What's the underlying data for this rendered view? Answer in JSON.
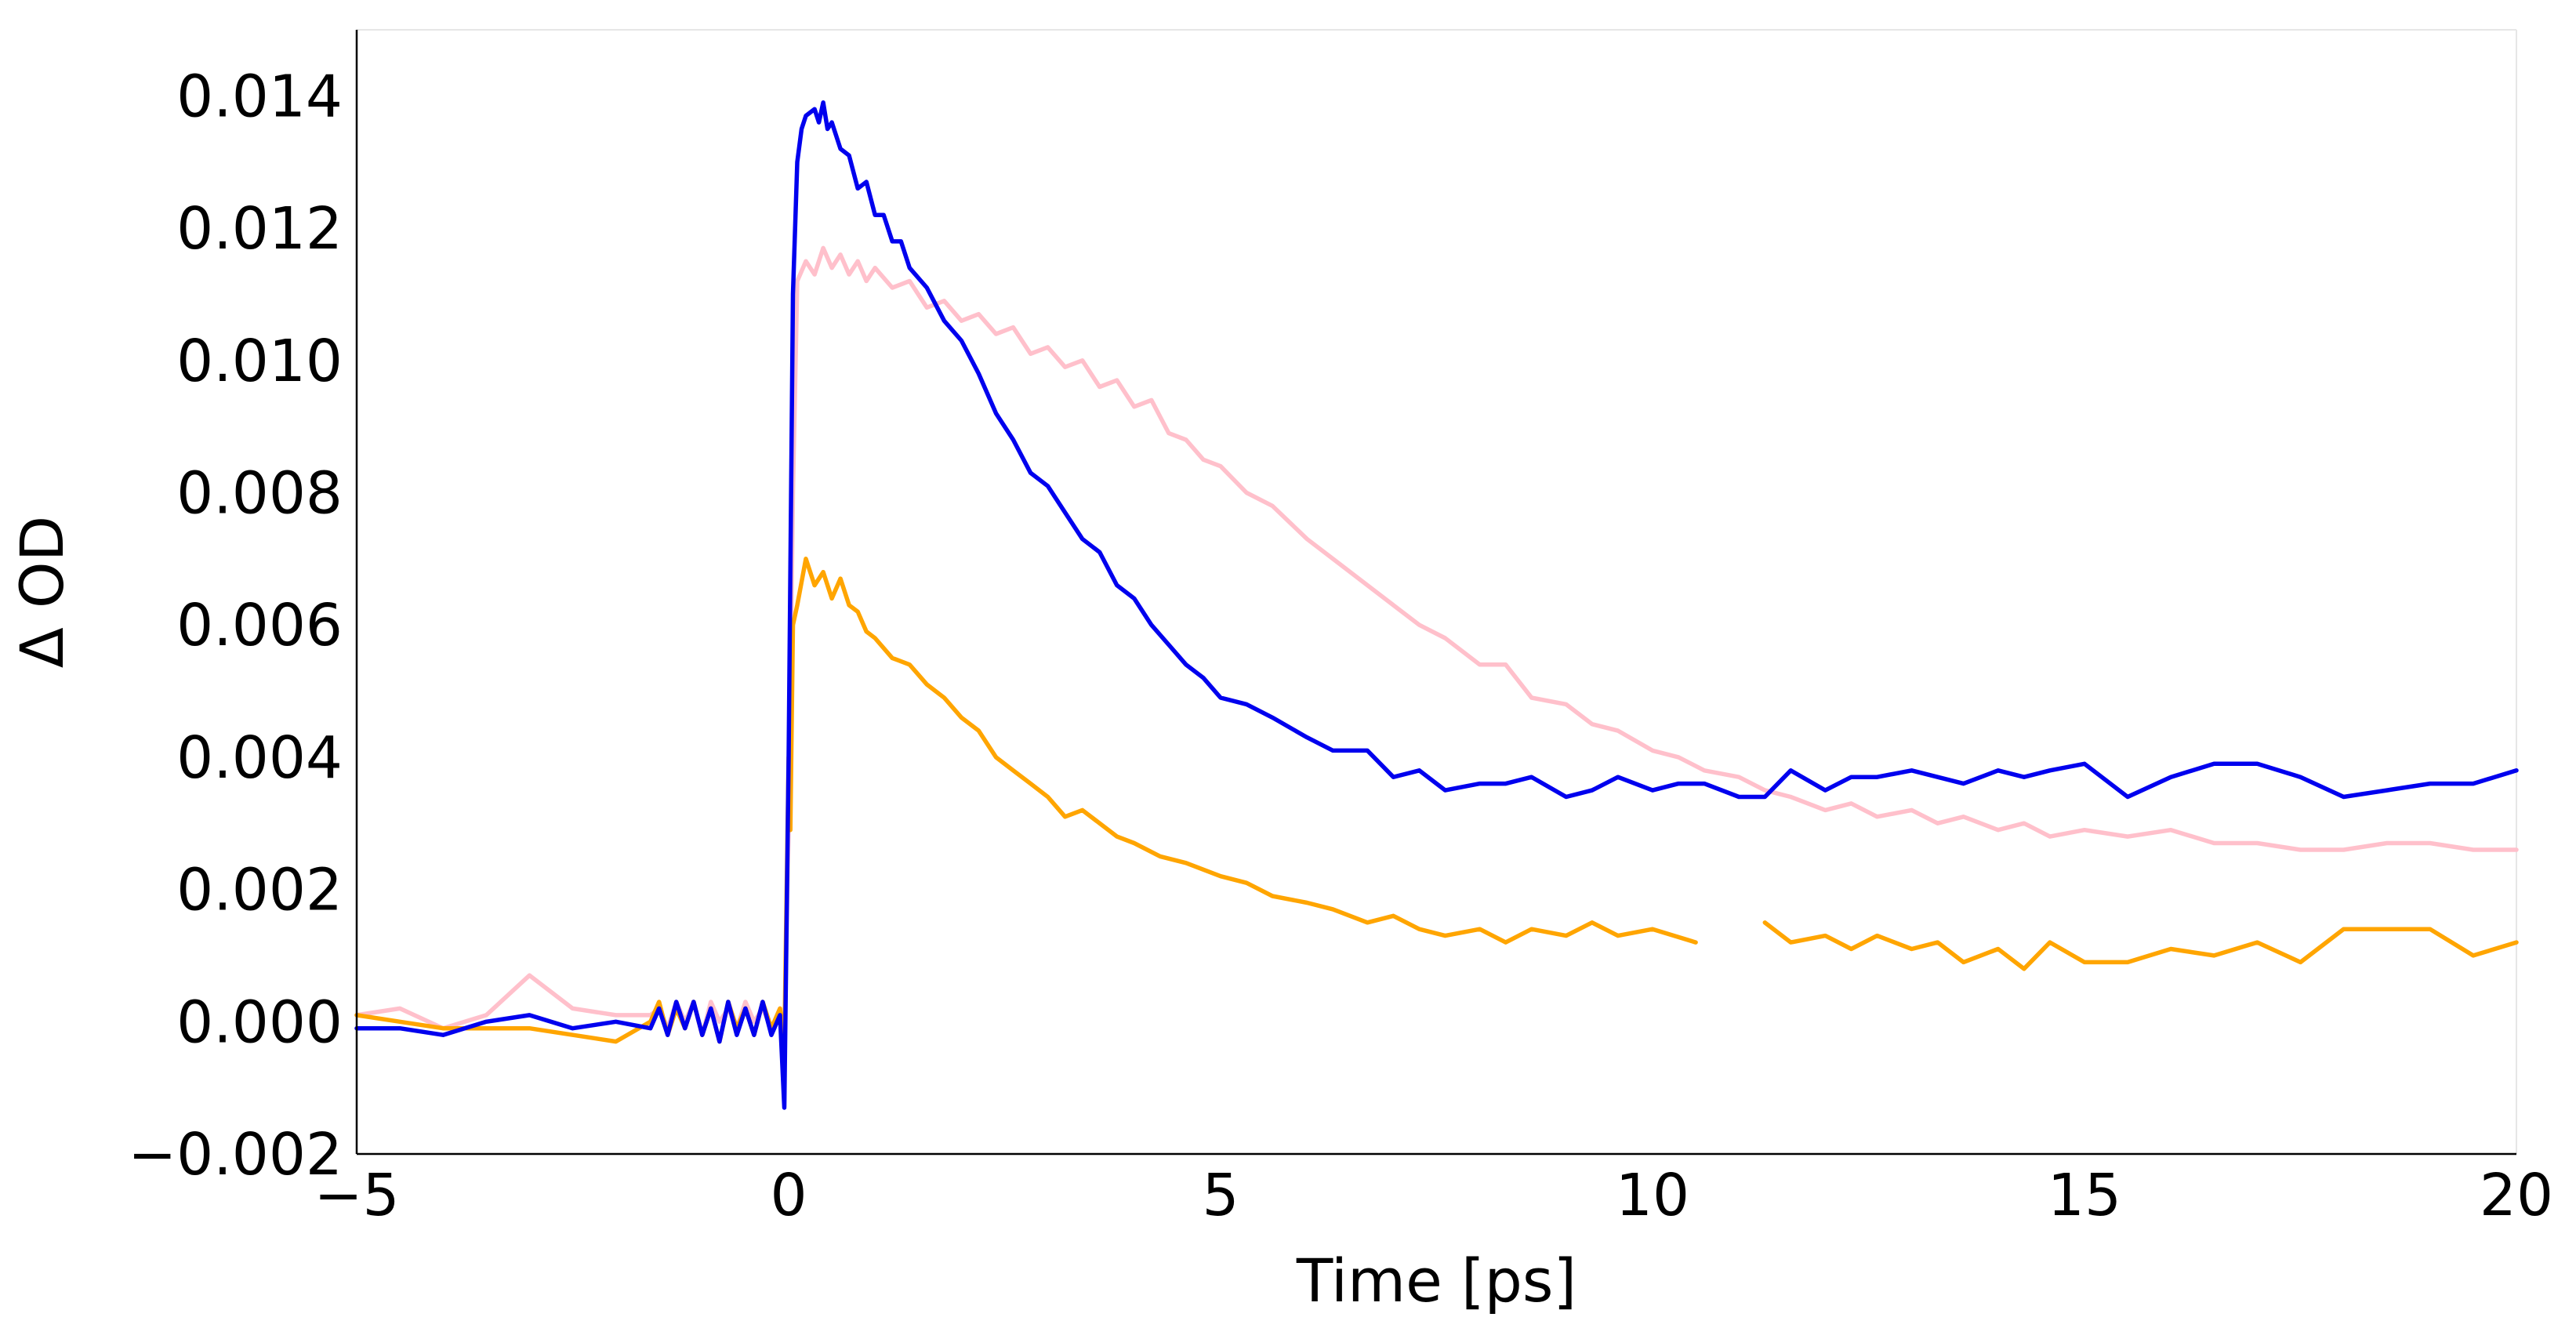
{
  "chart_data": {
    "type": "line",
    "title": "",
    "xlabel": "Time [ps]",
    "ylabel": "Δ OD",
    "xlim": [
      -5,
      20
    ],
    "ylim": [
      -0.002,
      0.015
    ],
    "x_ticks": [
      -5,
      0,
      5,
      10,
      15,
      20
    ],
    "x_tick_labels": [
      "−5",
      "0",
      "5",
      "10",
      "15",
      "20"
    ],
    "y_ticks": [
      -0.002,
      0.0,
      0.002,
      0.004,
      0.006,
      0.008,
      0.01,
      0.012,
      0.014
    ],
    "y_tick_labels": [
      "−0.002",
      "0.000",
      "0.002",
      "0.004",
      "0.006",
      "0.008",
      "0.010",
      "0.012",
      "0.014"
    ],
    "grid": false,
    "legend": "none",
    "series": [
      {
        "color": "#ffc0cb",
        "points": [
          [
            -5.0,
            0.0001
          ],
          [
            -4.5,
            0.0002
          ],
          [
            -4.0,
            -0.0001
          ],
          [
            -3.5,
            0.0001
          ],
          [
            -3.0,
            0.0007
          ],
          [
            -2.5,
            0.0002
          ],
          [
            -2.0,
            0.0001
          ],
          [
            -1.6,
            0.0001
          ],
          [
            -1.5,
            0.0002
          ],
          [
            -1.4,
            -0.0001
          ],
          [
            -1.3,
            0.0003
          ],
          [
            -1.2,
            0.0
          ],
          [
            -1.1,
            0.0003
          ],
          [
            -1.0,
            -0.0002
          ],
          [
            -0.9,
            0.0003
          ],
          [
            -0.8,
            0.0
          ],
          [
            -0.7,
            0.0002
          ],
          [
            -0.6,
            -0.0001
          ],
          [
            -0.5,
            0.0003
          ],
          [
            -0.4,
            0.0
          ],
          [
            -0.3,
            0.0002
          ],
          [
            -0.2,
            -0.0001
          ],
          [
            -0.1,
            0.0002
          ],
          [
            -0.05,
            -0.0005
          ],
          [
            0.0,
            0.003
          ],
          [
            0.05,
            0.008
          ],
          [
            0.1,
            0.0112
          ],
          [
            0.2,
            0.0115
          ],
          [
            0.3,
            0.0113
          ],
          [
            0.4,
            0.0117
          ],
          [
            0.5,
            0.0114
          ],
          [
            0.6,
            0.0116
          ],
          [
            0.7,
            0.0113
          ],
          [
            0.8,
            0.0115
          ],
          [
            0.9,
            0.0112
          ],
          [
            1.0,
            0.0114
          ],
          [
            1.2,
            0.0111
          ],
          [
            1.4,
            0.0112
          ],
          [
            1.6,
            0.0108
          ],
          [
            1.8,
            0.0109
          ],
          [
            2.0,
            0.0106
          ],
          [
            2.2,
            0.0107
          ],
          [
            2.4,
            0.0104
          ],
          [
            2.6,
            0.0105
          ],
          [
            2.8,
            0.0101
          ],
          [
            3.0,
            0.0102
          ],
          [
            3.2,
            0.0099
          ],
          [
            3.4,
            0.01
          ],
          [
            3.6,
            0.0096
          ],
          [
            3.8,
            0.0097
          ],
          [
            4.0,
            0.0093
          ],
          [
            4.2,
            0.0094
          ],
          [
            4.4,
            0.0089
          ],
          [
            4.6,
            0.0088
          ],
          [
            4.8,
            0.0085
          ],
          [
            5.0,
            0.0084
          ],
          [
            5.3,
            0.008
          ],
          [
            5.6,
            0.0078
          ],
          [
            6.0,
            0.0073
          ],
          [
            6.3,
            0.007
          ],
          [
            6.7,
            0.0066
          ],
          [
            7.0,
            0.0063
          ],
          [
            7.3,
            0.006
          ],
          [
            7.6,
            0.0058
          ],
          [
            8.0,
            0.0054
          ],
          [
            8.3,
            0.0054
          ],
          [
            8.6,
            0.0049
          ],
          [
            9.0,
            0.0048
          ],
          [
            9.3,
            0.0045
          ],
          [
            9.6,
            0.0044
          ],
          [
            10.0,
            0.0041
          ],
          [
            10.3,
            0.004
          ],
          [
            10.6,
            0.0038
          ],
          [
            11.0,
            0.0037
          ],
          [
            11.3,
            0.0035
          ],
          [
            11.6,
            0.0034
          ],
          [
            12.0,
            0.0032
          ],
          [
            12.3,
            0.0033
          ],
          [
            12.6,
            0.0031
          ],
          [
            13.0,
            0.0032
          ],
          [
            13.3,
            0.003
          ],
          [
            13.6,
            0.0031
          ],
          [
            14.0,
            0.0029
          ],
          [
            14.3,
            0.003
          ],
          [
            14.6,
            0.0028
          ],
          [
            15.0,
            0.0029
          ],
          [
            15.5,
            0.0028
          ],
          [
            16.0,
            0.0029
          ],
          [
            16.5,
            0.0027
          ],
          [
            17.0,
            0.0027
          ],
          [
            17.5,
            0.0026
          ],
          [
            18.0,
            0.0026
          ],
          [
            18.5,
            0.0027
          ],
          [
            19.0,
            0.0027
          ],
          [
            19.5,
            0.0026
          ],
          [
            20.0,
            0.0026
          ]
        ]
      },
      {
        "color": "#ffa500",
        "points": [
          [
            -5.0,
            0.0001
          ],
          [
            -4.0,
            -0.0001
          ],
          [
            -3.0,
            -0.0001
          ],
          [
            -2.0,
            -0.0003
          ],
          [
            -1.6,
            0.0
          ],
          [
            -1.5,
            0.0003
          ],
          [
            -1.4,
            -0.0002
          ],
          [
            -1.3,
            0.0002
          ],
          [
            -1.2,
            -0.0001
          ],
          [
            -1.1,
            0.0003
          ],
          [
            -1.0,
            -0.0002
          ],
          [
            -0.9,
            0.0002
          ],
          [
            -0.8,
            -0.0003
          ],
          [
            -0.7,
            0.0003
          ],
          [
            -0.6,
            -0.0001
          ],
          [
            -0.5,
            0.0002
          ],
          [
            -0.4,
            -0.0002
          ],
          [
            -0.3,
            0.0003
          ],
          [
            -0.2,
            -0.0001
          ],
          [
            -0.1,
            0.0002
          ],
          [
            -0.05,
            -0.0004
          ],
          [
            0.0,
            0.004
          ],
          [
            0.02,
            0.0029
          ],
          [
            0.05,
            0.006
          ],
          [
            0.1,
            0.0063
          ],
          [
            0.2,
            0.007
          ],
          [
            0.3,
            0.0066
          ],
          [
            0.4,
            0.0068
          ],
          [
            0.5,
            0.0064
          ],
          [
            0.6,
            0.0067
          ],
          [
            0.7,
            0.0063
          ],
          [
            0.8,
            0.0062
          ],
          [
            0.9,
            0.0059
          ],
          [
            1.0,
            0.0058
          ],
          [
            1.2,
            0.0055
          ],
          [
            1.4,
            0.0054
          ],
          [
            1.6,
            0.0051
          ],
          [
            1.8,
            0.0049
          ],
          [
            2.0,
            0.0046
          ],
          [
            2.2,
            0.0044
          ],
          [
            2.4,
            0.004
          ],
          [
            2.6,
            0.0038
          ],
          [
            2.8,
            0.0036
          ],
          [
            3.0,
            0.0034
          ],
          [
            3.2,
            0.0031
          ],
          [
            3.4,
            0.0032
          ],
          [
            3.6,
            0.003
          ],
          [
            3.8,
            0.0028
          ],
          [
            4.0,
            0.0027
          ],
          [
            4.3,
            0.0025
          ],
          [
            4.6,
            0.0024
          ],
          [
            5.0,
            0.0022
          ],
          [
            5.3,
            0.0021
          ],
          [
            5.6,
            0.0019
          ],
          [
            6.0,
            0.0018
          ],
          [
            6.3,
            0.0017
          ],
          [
            6.7,
            0.0015
          ],
          [
            7.0,
            0.0016
          ],
          [
            7.3,
            0.0014
          ],
          [
            7.6,
            0.0013
          ],
          [
            8.0,
            0.0014
          ],
          [
            8.3,
            0.0012
          ],
          [
            8.6,
            0.0014
          ],
          [
            9.0,
            0.0013
          ],
          [
            9.3,
            0.0015
          ],
          [
            9.6,
            0.0013
          ],
          [
            10.0,
            0.0014
          ],
          [
            10.5,
            0.0012
          ],
          null,
          [
            11.3,
            0.0015
          ],
          [
            11.6,
            0.0012
          ],
          [
            12.0,
            0.0013
          ],
          [
            12.3,
            0.0011
          ],
          [
            12.6,
            0.0013
          ],
          [
            13.0,
            0.0011
          ],
          [
            13.3,
            0.0012
          ],
          [
            13.6,
            0.0009
          ],
          [
            14.0,
            0.0011
          ],
          [
            14.3,
            0.0008
          ],
          [
            14.6,
            0.0012
          ],
          [
            15.0,
            0.0009
          ],
          [
            15.5,
            0.0009
          ],
          [
            16.0,
            0.0011
          ],
          [
            16.5,
            0.001
          ],
          [
            17.0,
            0.0012
          ],
          [
            17.5,
            0.0009
          ],
          [
            18.0,
            0.0014
          ],
          [
            18.5,
            0.0014
          ],
          [
            19.0,
            0.0014
          ],
          [
            19.5,
            0.001
          ],
          [
            20.0,
            0.0012
          ]
        ]
      },
      {
        "color": "#0000ee",
        "points": [
          [
            -5.0,
            -0.0001
          ],
          [
            -4.5,
            -0.0001
          ],
          [
            -4.0,
            -0.0002
          ],
          [
            -3.5,
            0.0
          ],
          [
            -3.0,
            0.0001
          ],
          [
            -2.5,
            -0.0001
          ],
          [
            -2.0,
            0.0
          ],
          [
            -1.6,
            -0.0001
          ],
          [
            -1.5,
            0.0002
          ],
          [
            -1.4,
            -0.0002
          ],
          [
            -1.3,
            0.0003
          ],
          [
            -1.2,
            -0.0001
          ],
          [
            -1.1,
            0.0003
          ],
          [
            -1.0,
            -0.0002
          ],
          [
            -0.9,
            0.0002
          ],
          [
            -0.8,
            -0.0003
          ],
          [
            -0.7,
            0.0003
          ],
          [
            -0.6,
            -0.0002
          ],
          [
            -0.5,
            0.0002
          ],
          [
            -0.4,
            -0.0002
          ],
          [
            -0.3,
            0.0003
          ],
          [
            -0.2,
            -0.0002
          ],
          [
            -0.1,
            0.0001
          ],
          [
            -0.05,
            -0.0013
          ],
          [
            0.0,
            0.004
          ],
          [
            0.05,
            0.011
          ],
          [
            0.1,
            0.013
          ],
          [
            0.15,
            0.0135
          ],
          [
            0.2,
            0.0137
          ],
          [
            0.3,
            0.0138
          ],
          [
            0.35,
            0.0136
          ],
          [
            0.4,
            0.0139
          ],
          [
            0.45,
            0.0135
          ],
          [
            0.5,
            0.0136
          ],
          [
            0.6,
            0.0132
          ],
          [
            0.7,
            0.0131
          ],
          [
            0.8,
            0.0126
          ],
          [
            0.9,
            0.0127
          ],
          [
            1.0,
            0.0122
          ],
          [
            1.1,
            0.0122
          ],
          [
            1.2,
            0.0118
          ],
          [
            1.3,
            0.0118
          ],
          [
            1.4,
            0.0114
          ],
          [
            1.6,
            0.0111
          ],
          [
            1.8,
            0.0106
          ],
          [
            2.0,
            0.0103
          ],
          [
            2.2,
            0.0098
          ],
          [
            2.4,
            0.0092
          ],
          [
            2.6,
            0.0088
          ],
          [
            2.8,
            0.0083
          ],
          [
            3.0,
            0.0081
          ],
          [
            3.2,
            0.0077
          ],
          [
            3.4,
            0.0073
          ],
          [
            3.6,
            0.0071
          ],
          [
            3.8,
            0.0066
          ],
          [
            4.0,
            0.0064
          ],
          [
            4.2,
            0.006
          ],
          [
            4.4,
            0.0057
          ],
          [
            4.6,
            0.0054
          ],
          [
            4.8,
            0.0052
          ],
          [
            5.0,
            0.0049
          ],
          [
            5.3,
            0.0048
          ],
          [
            5.6,
            0.0046
          ],
          [
            6.0,
            0.0043
          ],
          [
            6.3,
            0.0041
          ],
          [
            6.7,
            0.0041
          ],
          [
            7.0,
            0.0037
          ],
          [
            7.3,
            0.0038
          ],
          [
            7.6,
            0.0035
          ],
          [
            8.0,
            0.0036
          ],
          [
            8.3,
            0.0036
          ],
          [
            8.6,
            0.0037
          ],
          [
            9.0,
            0.0034
          ],
          [
            9.3,
            0.0035
          ],
          [
            9.6,
            0.0037
          ],
          [
            10.0,
            0.0035
          ],
          [
            10.3,
            0.0036
          ],
          [
            10.6,
            0.0036
          ],
          [
            11.0,
            0.0034
          ],
          [
            11.3,
            0.0034
          ],
          [
            11.6,
            0.0038
          ],
          [
            12.0,
            0.0035
          ],
          [
            12.3,
            0.0037
          ],
          [
            12.6,
            0.0037
          ],
          [
            13.0,
            0.0038
          ],
          [
            13.3,
            0.0037
          ],
          [
            13.6,
            0.0036
          ],
          [
            14.0,
            0.0038
          ],
          [
            14.3,
            0.0037
          ],
          [
            14.6,
            0.0038
          ],
          [
            15.0,
            0.0039
          ],
          [
            15.5,
            0.0034
          ],
          [
            16.0,
            0.0037
          ],
          [
            16.5,
            0.0039
          ],
          [
            17.0,
            0.0039
          ],
          [
            17.5,
            0.0037
          ],
          [
            18.0,
            0.0034
          ],
          [
            18.5,
            0.0035
          ],
          [
            19.0,
            0.0036
          ],
          [
            19.5,
            0.0036
          ],
          [
            20.0,
            0.0038
          ]
        ]
      }
    ]
  }
}
